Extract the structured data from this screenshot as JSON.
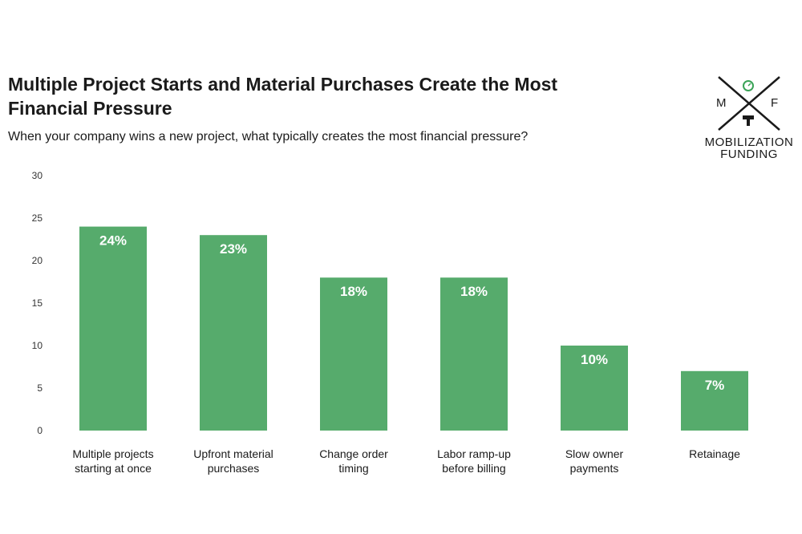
{
  "header": {
    "title": "Multiple Project Starts and Material Purchases Create the Most Financial Pressure",
    "subtitle": "When your company wins a new project, what typically creates the most financial pressure?"
  },
  "logo": {
    "letter_left": "M",
    "letter_right": "F",
    "line1": "MOBILIZATION",
    "line2": "FUNDING",
    "icon": "crossed-tools-logo-icon",
    "accent_color": "#3aa357"
  },
  "chart_data": {
    "type": "bar",
    "categories": [
      [
        "Multiple projects",
        "starting at once"
      ],
      [
        "Upfront material",
        "purchases"
      ],
      [
        "Change order",
        "timing"
      ],
      [
        "Labor ramp-up",
        "before billing"
      ],
      [
        "Slow owner",
        "payments"
      ],
      [
        "Retainage"
      ]
    ],
    "values": [
      24,
      23,
      18,
      18,
      10,
      7
    ],
    "data_labels": [
      "24%",
      "23%",
      "18%",
      "18%",
      "10%",
      "7%"
    ],
    "ylim": [
      0,
      30
    ],
    "yticks": [
      0,
      5,
      10,
      15,
      20,
      25,
      30
    ],
    "grid": false,
    "bar_color": "#56ab6c"
  }
}
